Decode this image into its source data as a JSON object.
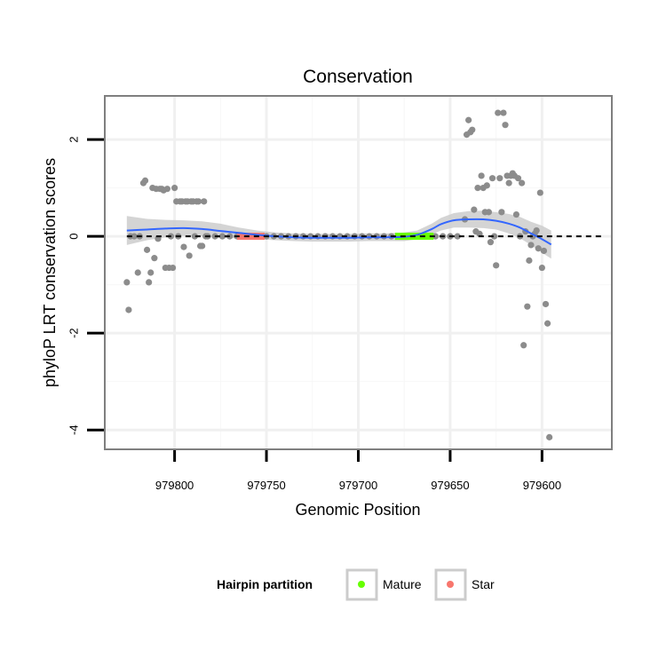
{
  "chart_data": {
    "type": "scatter",
    "title": "Conservation",
    "xlabel": "Genomic Position",
    "ylabel": "phyloP LRT conservation scores",
    "x_reversed": true,
    "xlim": [
      979838,
      979562
    ],
    "ylim": [
      -4.4,
      2.9
    ],
    "x_ticks": [
      979800,
      979750,
      979700,
      979650,
      979600
    ],
    "y_ticks": [
      2,
      0,
      -2,
      -4
    ],
    "x_tick_labels": [
      "979800",
      "979750",
      "979700",
      "979650",
      "979600"
    ],
    "y_tick_labels": [
      "2",
      "0",
      "-2",
      "-4"
    ],
    "grid": true,
    "reference_line": {
      "y": 0,
      "style": "dashed"
    },
    "colors": {
      "points": "#8c8c8c",
      "smooth": "#3366ff",
      "ribbon": "#cccccc",
      "mature": "#66ff00",
      "star": "#f8766d"
    },
    "legend": {
      "title": "Hairpin partition",
      "position": "bottom",
      "entries": [
        {
          "label": "Mature",
          "color": "#66ff00"
        },
        {
          "label": "Star",
          "color": "#f8766d"
        }
      ]
    },
    "series": [
      {
        "name": "scores",
        "points": [
          [
            979826,
            -0.95
          ],
          [
            979825,
            -1.52
          ],
          [
            979824,
            0.0
          ],
          [
            979822,
            0.0
          ],
          [
            979820,
            -0.75
          ],
          [
            979819,
            0.0
          ],
          [
            979817,
            1.1
          ],
          [
            979816,
            1.15
          ],
          [
            979815,
            -0.28
          ],
          [
            979814,
            -0.95
          ],
          [
            979813,
            -0.75
          ],
          [
            979812,
            1.0
          ],
          [
            979811,
            -0.45
          ],
          [
            979810,
            0.98
          ],
          [
            979809,
            -0.05
          ],
          [
            979808,
            0.98
          ],
          [
            979807,
            0.98
          ],
          [
            979806,
            0.95
          ],
          [
            979805,
            -0.65
          ],
          [
            979804,
            0.98
          ],
          [
            979803,
            -0.65
          ],
          [
            979802,
            0.0
          ],
          [
            979801,
            -0.65
          ],
          [
            979800,
            1.0
          ],
          [
            979799,
            0.72
          ],
          [
            979798,
            0.0
          ],
          [
            979797,
            0.72
          ],
          [
            979796,
            0.72
          ],
          [
            979795,
            -0.22
          ],
          [
            979794,
            0.72
          ],
          [
            979793,
            0.72
          ],
          [
            979792,
            -0.4
          ],
          [
            979791,
            0.72
          ],
          [
            979790,
            0.72
          ],
          [
            979789,
            0.0
          ],
          [
            979788,
            0.72
          ],
          [
            979787,
            0.72
          ],
          [
            979786,
            -0.2
          ],
          [
            979785,
            -0.2
          ],
          [
            979784,
            0.72
          ],
          [
            979783,
            0.0
          ],
          [
            979782,
            0.0
          ],
          [
            979778,
            0.0
          ],
          [
            979774,
            0.0
          ],
          [
            979770,
            0.0
          ],
          [
            979766,
            0.0
          ],
          [
            979762,
            0.0
          ],
          [
            979758,
            0.0
          ],
          [
            979754,
            0.0
          ],
          [
            979750,
            0.0
          ],
          [
            979746,
            0.0
          ],
          [
            979742,
            0.0
          ],
          [
            979738,
            0.0
          ],
          [
            979734,
            0.0
          ],
          [
            979730,
            0.0
          ],
          [
            979726,
            0.0
          ],
          [
            979722,
            0.0
          ],
          [
            979718,
            0.0
          ],
          [
            979714,
            0.0
          ],
          [
            979710,
            0.0
          ],
          [
            979706,
            0.0
          ],
          [
            979702,
            0.0
          ],
          [
            979698,
            0.0
          ],
          [
            979694,
            0.0
          ],
          [
            979690,
            0.0
          ],
          [
            979686,
            0.0
          ],
          [
            979682,
            0.0
          ],
          [
            979678,
            0.0
          ],
          [
            979674,
            0.0
          ],
          [
            979670,
            0.0
          ],
          [
            979666,
            0.0
          ],
          [
            979662,
            0.0
          ],
          [
            979658,
            0.0
          ],
          [
            979654,
            0.0
          ],
          [
            979650,
            0.0
          ],
          [
            979646,
            0.0
          ],
          [
            979642,
            0.35
          ],
          [
            979641,
            2.1
          ],
          [
            979640,
            2.4
          ],
          [
            979639,
            2.15
          ],
          [
            979638,
            2.2
          ],
          [
            979637,
            0.55
          ],
          [
            979636,
            0.1
          ],
          [
            979635,
            1.0
          ],
          [
            979634,
            0.05
          ],
          [
            979633,
            1.25
          ],
          [
            979632,
            1.0
          ],
          [
            979631,
            0.5
          ],
          [
            979630,
            1.05
          ],
          [
            979629,
            0.5
          ],
          [
            979628,
            -0.12
          ],
          [
            979627,
            1.2
          ],
          [
            979626,
            0.0
          ],
          [
            979625,
            -0.6
          ],
          [
            979624,
            2.55
          ],
          [
            979623,
            1.2
          ],
          [
            979622,
            0.5
          ],
          [
            979621,
            2.55
          ],
          [
            979620,
            2.3
          ],
          [
            979619,
            1.25
          ],
          [
            979618,
            1.1
          ],
          [
            979617,
            1.25
          ],
          [
            979616,
            1.3
          ],
          [
            979615,
            1.25
          ],
          [
            979614,
            0.45
          ],
          [
            979613,
            1.2
          ],
          [
            979612,
            0.0
          ],
          [
            979611,
            1.1
          ],
          [
            979610,
            -2.25
          ],
          [
            979609,
            0.1
          ],
          [
            979608,
            -1.45
          ],
          [
            979607,
            -0.5
          ],
          [
            979606,
            -0.18
          ],
          [
            979605,
            0.0
          ],
          [
            979604,
            0.05
          ],
          [
            979603,
            0.12
          ],
          [
            979602,
            -0.25
          ],
          [
            979601,
            0.9
          ],
          [
            979600,
            -0.65
          ],
          [
            979599,
            -0.3
          ],
          [
            979598,
            -1.4
          ],
          [
            979597,
            -1.8
          ],
          [
            979596,
            -4.15
          ]
        ]
      },
      {
        "name": "smooth",
        "points": [
          [
            979826,
            0.12
          ],
          [
            979815,
            0.14
          ],
          [
            979805,
            0.16
          ],
          [
            979795,
            0.17
          ],
          [
            979785,
            0.15
          ],
          [
            979775,
            0.11
          ],
          [
            979765,
            0.07
          ],
          [
            979755,
            0.03
          ],
          [
            979745,
            0.0
          ],
          [
            979735,
            -0.02
          ],
          [
            979725,
            -0.03
          ],
          [
            979715,
            -0.03
          ],
          [
            979705,
            -0.03
          ],
          [
            979695,
            -0.02
          ],
          [
            979685,
            -0.02
          ],
          [
            979675,
            -0.01
          ],
          [
            979668,
            0.03
          ],
          [
            979660,
            0.15
          ],
          [
            979655,
            0.25
          ],
          [
            979648,
            0.33
          ],
          [
            979640,
            0.35
          ],
          [
            979632,
            0.35
          ],
          [
            979625,
            0.32
          ],
          [
            979618,
            0.26
          ],
          [
            979612,
            0.18
          ],
          [
            979606,
            0.06
          ],
          [
            979600,
            -0.06
          ],
          [
            979595,
            -0.17
          ]
        ]
      },
      {
        "name": "ribbon",
        "upper": [
          [
            979826,
            0.42
          ],
          [
            979815,
            0.36
          ],
          [
            979805,
            0.34
          ],
          [
            979795,
            0.33
          ],
          [
            979785,
            0.31
          ],
          [
            979775,
            0.26
          ],
          [
            979765,
            0.18
          ],
          [
            979755,
            0.12
          ],
          [
            979745,
            0.08
          ],
          [
            979735,
            0.06
          ],
          [
            979725,
            0.05
          ],
          [
            979715,
            0.05
          ],
          [
            979705,
            0.05
          ],
          [
            979695,
            0.06
          ],
          [
            979685,
            0.06
          ],
          [
            979675,
            0.08
          ],
          [
            979668,
            0.12
          ],
          [
            979660,
            0.26
          ],
          [
            979655,
            0.38
          ],
          [
            979648,
            0.48
          ],
          [
            979640,
            0.52
          ],
          [
            979632,
            0.53
          ],
          [
            979625,
            0.5
          ],
          [
            979618,
            0.46
          ],
          [
            979612,
            0.4
          ],
          [
            979606,
            0.3
          ],
          [
            979600,
            0.22
          ],
          [
            979595,
            0.12
          ]
        ],
        "lower": [
          [
            979826,
            -0.18
          ],
          [
            979815,
            -0.08
          ],
          [
            979805,
            -0.02
          ],
          [
            979795,
            0.01
          ],
          [
            979785,
            0.0
          ],
          [
            979775,
            -0.04
          ],
          [
            979765,
            -0.04
          ],
          [
            979755,
            -0.06
          ],
          [
            979745,
            -0.08
          ],
          [
            979735,
            -0.1
          ],
          [
            979725,
            -0.11
          ],
          [
            979715,
            -0.11
          ],
          [
            979705,
            -0.11
          ],
          [
            979695,
            -0.1
          ],
          [
            979685,
            -0.1
          ],
          [
            979675,
            -0.1
          ],
          [
            979668,
            -0.06
          ],
          [
            979660,
            0.04
          ],
          [
            979655,
            0.12
          ],
          [
            979648,
            0.18
          ],
          [
            979640,
            0.18
          ],
          [
            979632,
            0.17
          ],
          [
            979625,
            0.14
          ],
          [
            979618,
            0.06
          ],
          [
            979612,
            -0.04
          ],
          [
            979606,
            -0.18
          ],
          [
            979600,
            -0.34
          ],
          [
            979595,
            -0.46
          ]
        ]
      },
      {
        "name": "Star",
        "x_range": [
          979766,
          979751
        ],
        "y": 0.0
      },
      {
        "name": "Mature",
        "x_range": [
          979680,
          979659
        ],
        "y": 0.0
      }
    ]
  }
}
